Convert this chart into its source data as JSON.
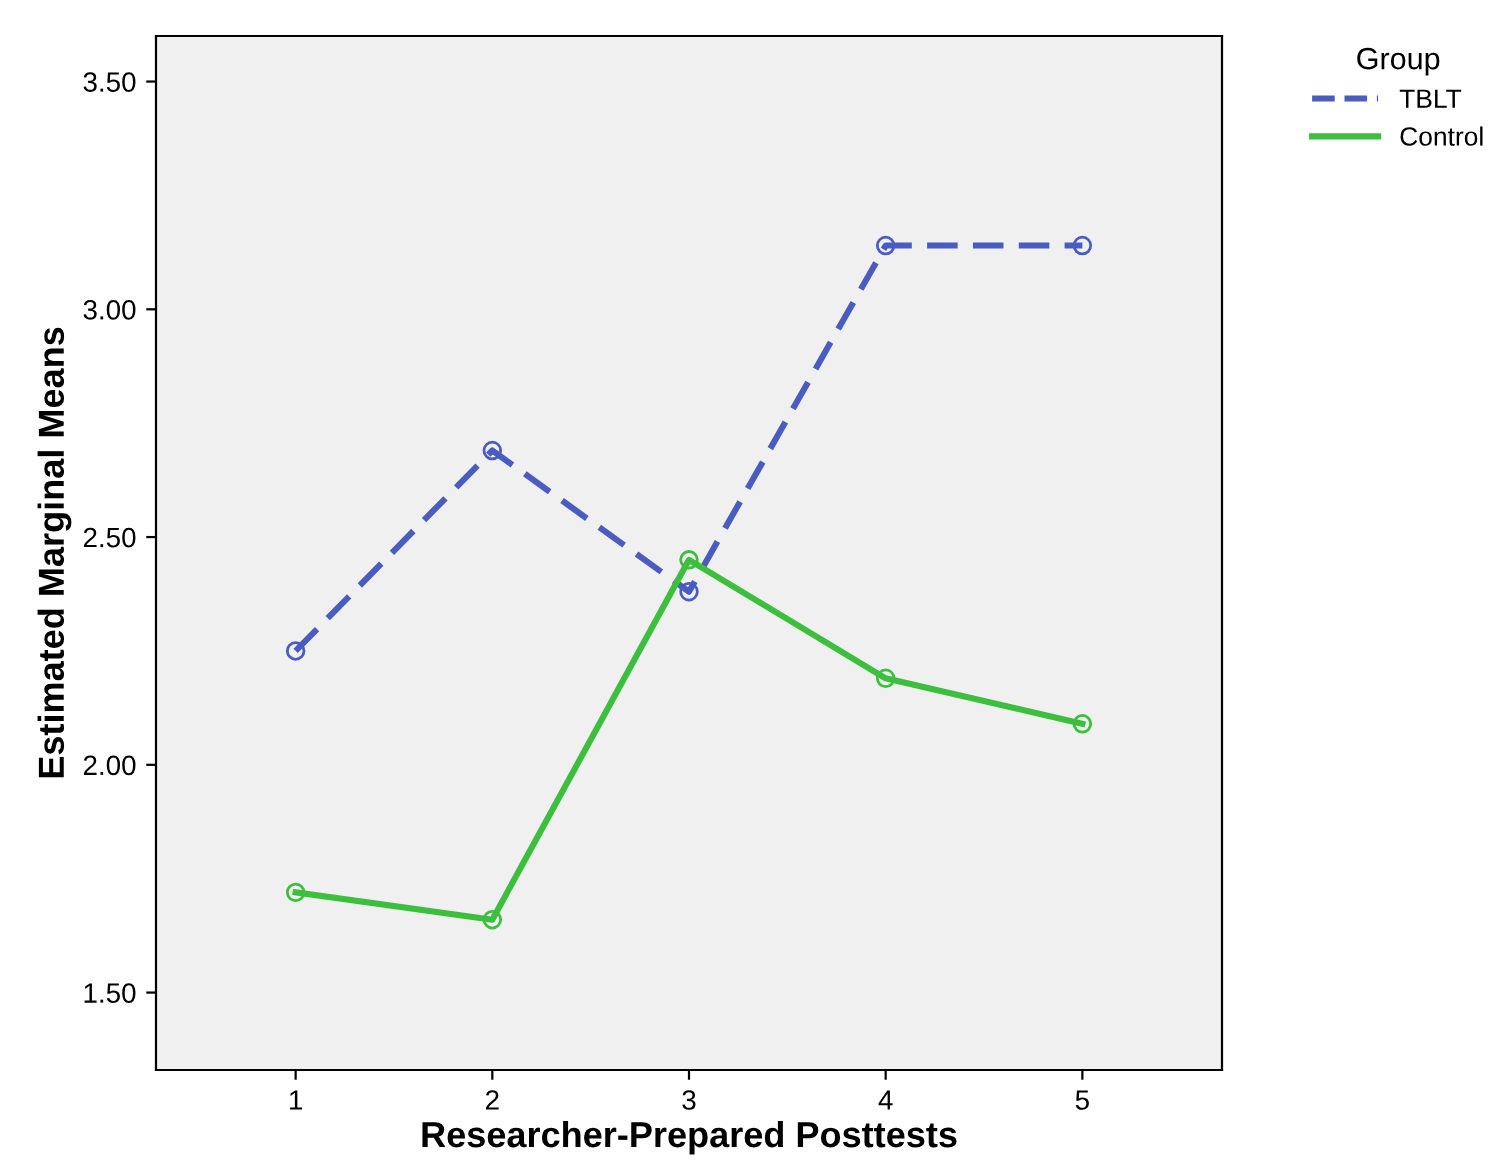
{
  "chart_data": {
    "type": "line",
    "xlabel": "Researcher-Prepared Posttests",
    "ylabel": "Estimated Marginal Means",
    "legend_title": "Group",
    "x": [
      1,
      2,
      3,
      4,
      5
    ],
    "series": [
      {
        "name": "TBLT",
        "color": "#4a5cbf",
        "values": [
          2.25,
          2.69,
          2.38,
          3.14,
          3.14
        ],
        "line_style": "dashed"
      },
      {
        "name": "Control",
        "color": "#3cbf3c",
        "values": [
          1.72,
          1.66,
          2.45,
          2.19,
          2.09
        ],
        "line_style": "solid"
      }
    ],
    "xlim": [
      0.29,
      5.71
    ],
    "xticks": [
      1,
      2,
      3,
      4,
      5
    ],
    "ylim": [
      1.33,
      3.6
    ],
    "yticks": [
      {
        "value": 1.5,
        "label": "1.50"
      },
      {
        "value": 2.0,
        "label": "2.00"
      },
      {
        "value": 2.5,
        "label": "2.50"
      },
      {
        "value": 3.0,
        "label": "3.00"
      },
      {
        "value": 3.5,
        "label": "3.50"
      }
    ],
    "marker": "circle",
    "grid": false,
    "legend": "top right"
  }
}
